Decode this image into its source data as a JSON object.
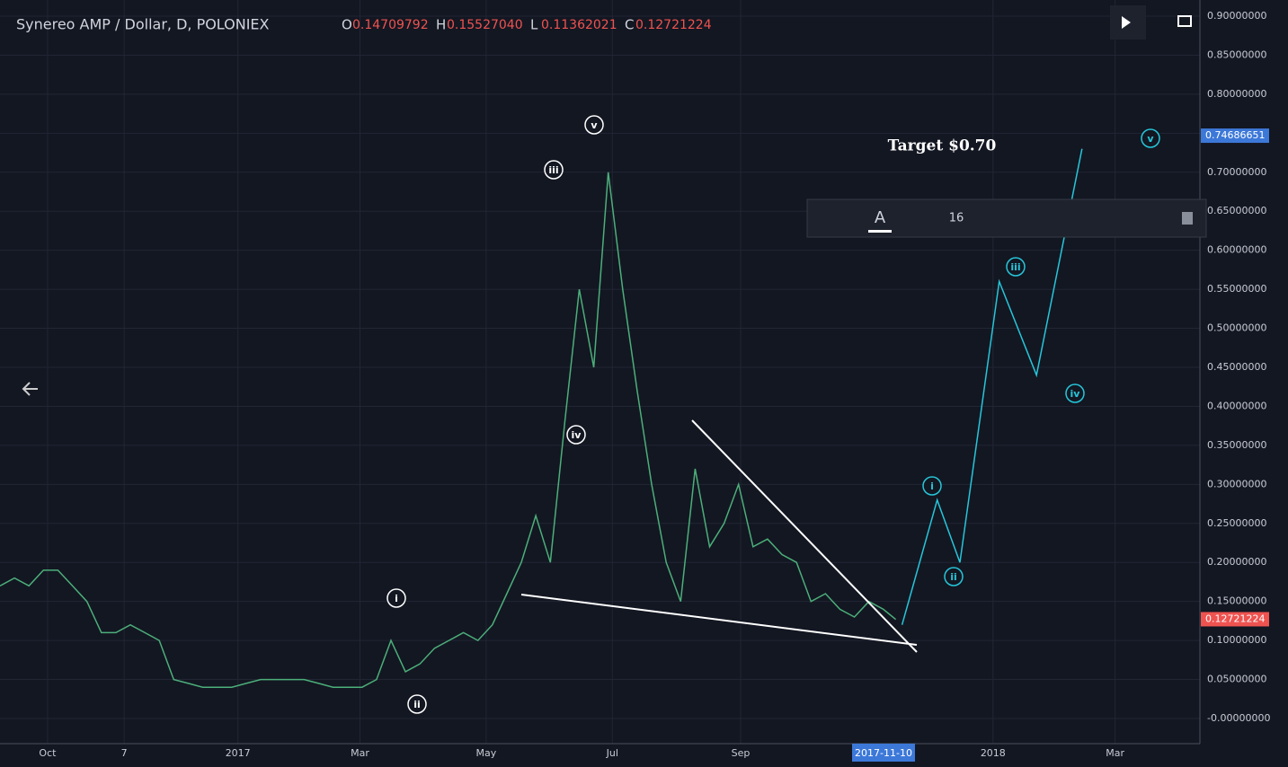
{
  "header": {
    "symbol": "Synereo AMP / Dollar, D, POLONIEX",
    "ohlc": [
      {
        "key": "O",
        "value": "0.14709792"
      },
      {
        "key": "H",
        "value": "0.15527040"
      },
      {
        "key": "L",
        "value": "0.11362021"
      },
      {
        "key": "C",
        "value": "0.12721224"
      }
    ]
  },
  "toolbar": {
    "font_size": "16"
  },
  "chart_data": {
    "type": "line",
    "xlim": [
      -23,
      557
    ],
    "ylim": [
      0,
      0.9
    ],
    "xticks": [
      {
        "value": 0,
        "label": "Oct"
      },
      {
        "value": 37,
        "label": "7"
      },
      {
        "value": 92,
        "label": "2017"
      },
      {
        "value": 151,
        "label": "Mar"
      },
      {
        "value": 212,
        "label": "May"
      },
      {
        "value": 273,
        "label": "Jul"
      },
      {
        "value": 335,
        "label": "Sep"
      },
      {
        "value": 457,
        "label": "2018"
      },
      {
        "value": 516,
        "label": "Mar"
      }
    ],
    "yticks": [
      {
        "value": 0,
        "label": "-0.00000000"
      },
      {
        "value": 0.05,
        "label": "0.05000000"
      },
      {
        "value": 0.1,
        "label": "0.10000000"
      },
      {
        "value": 0.15,
        "label": "0.15000000"
      },
      {
        "value": 0.2,
        "label": "0.20000000"
      },
      {
        "value": 0.25,
        "label": "0.25000000"
      },
      {
        "value": 0.3,
        "label": "0.30000000"
      },
      {
        "value": 0.35,
        "label": "0.35000000"
      },
      {
        "value": 0.4,
        "label": "0.40000000"
      },
      {
        "value": 0.45,
        "label": "0.45000000"
      },
      {
        "value": 0.5,
        "label": "0.50000000"
      },
      {
        "value": 0.55,
        "label": "0.55000000"
      },
      {
        "value": 0.6,
        "label": "0.60000000"
      },
      {
        "value": 0.65,
        "label": "0.65000000"
      },
      {
        "value": 0.7,
        "label": "0.70000000"
      },
      {
        "value": 0.75,
        "label": "0.75000000"
      },
      {
        "value": 0.8,
        "label": "0.80000000"
      },
      {
        "value": 0.85,
        "label": "0.85000000"
      },
      {
        "value": 0.9,
        "label": "0.90000000"
      }
    ],
    "grid": true,
    "cursor_label": "2017-11-10",
    "price_tags": [
      {
        "value": 0.74686651,
        "color": "#3c78d8"
      },
      {
        "value": 0.12721224,
        "color": "#ef5350"
      }
    ],
    "annotation": "Target $0.70",
    "series": [
      {
        "color": "#4caf7a",
        "x": [
          -23,
          -16,
          -9,
          -2,
          5,
          12,
          19,
          26,
          33,
          40,
          47,
          54,
          61,
          68,
          75,
          82,
          89,
          96,
          103,
          110,
          117,
          124,
          131,
          138,
          145,
          152,
          159,
          166,
          173,
          180,
          187,
          194,
          201,
          208,
          215,
          222,
          229,
          236,
          243,
          250,
          257,
          264,
          271,
          278,
          285,
          292,
          299,
          306,
          313,
          320,
          327,
          334,
          341,
          348,
          355,
          362,
          369,
          376,
          383,
          390,
          397,
          404,
          410
        ],
        "values": [
          0.17,
          0.18,
          0.17,
          0.19,
          0.19,
          0.17,
          0.15,
          0.11,
          0.11,
          0.12,
          0.11,
          0.1,
          0.05,
          0.045,
          0.04,
          0.04,
          0.04,
          0.045,
          0.05,
          0.05,
          0.05,
          0.05,
          0.045,
          0.04,
          0.04,
          0.04,
          0.05,
          0.1,
          0.06,
          0.07,
          0.09,
          0.1,
          0.11,
          0.1,
          0.12,
          0.16,
          0.2,
          0.26,
          0.2,
          0.38,
          0.55,
          0.45,
          0.7,
          0.55,
          0.42,
          0.3,
          0.2,
          0.15,
          0.32,
          0.22,
          0.25,
          0.3,
          0.22,
          0.23,
          0.21,
          0.2,
          0.15,
          0.16,
          0.14,
          0.13,
          0.15,
          0.14,
          0.127
        ]
      },
      {
        "color": "#26c6da",
        "x": [
          413,
          430,
          441,
          460,
          478,
          500
        ],
        "values": [
          0.12,
          0.28,
          0.2,
          0.56,
          0.44,
          0.73
        ]
      }
    ],
    "waves": {
      "past": [
        "i",
        "ii",
        "iii",
        "iv",
        "v"
      ],
      "projected": [
        "i",
        "ii",
        "iii",
        "iv",
        "v"
      ]
    }
  }
}
